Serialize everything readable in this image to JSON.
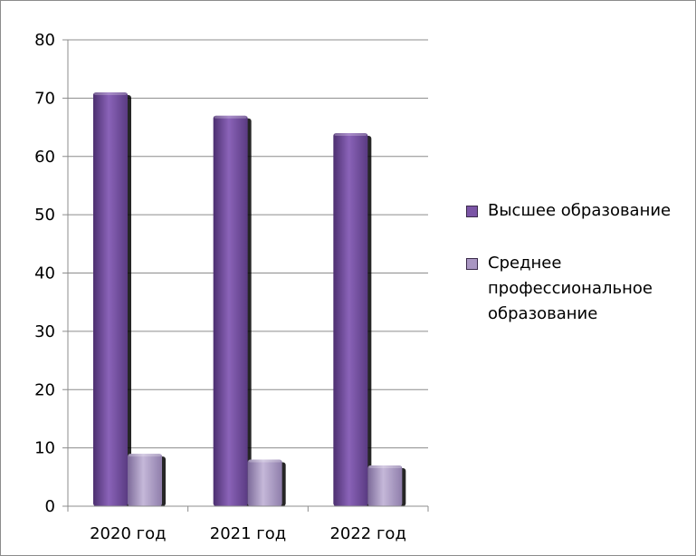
{
  "chart_data": {
    "type": "bar",
    "categories": [
      "2020 год",
      "2021 год",
      "2022 год"
    ],
    "series": [
      {
        "name": "Высшее образование",
        "values": [
          71,
          67,
          64
        ],
        "color": "#7b55a6"
      },
      {
        "name": "Среднее профессиональное образование",
        "values": [
          9,
          8,
          7
        ],
        "color": "#a996c2"
      }
    ],
    "yticks": [
      "0",
      "10",
      "20",
      "30",
      "40",
      "50",
      "60",
      "70",
      "80"
    ],
    "ylim": [
      0,
      80
    ],
    "grid": true,
    "legend_position": "right"
  }
}
